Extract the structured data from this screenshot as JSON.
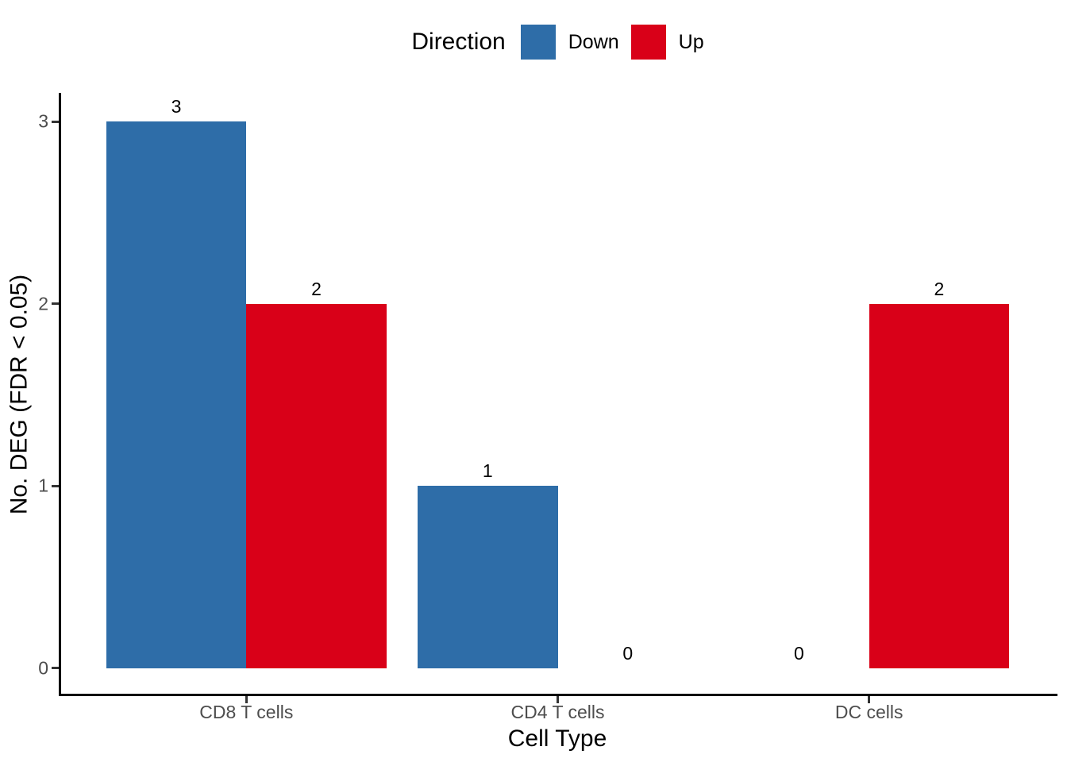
{
  "figure": {
    "background": "#FFFFFF"
  },
  "legend": {
    "title": "Direction",
    "position": "top-center"
  },
  "chart_data": {
    "type": "bar",
    "title": "",
    "xlabel": "Cell Type",
    "ylabel": "No. DEG (FDR < 0.05)",
    "categories": [
      "CD8 T cells",
      "CD4 T cells",
      "DC cells"
    ],
    "series": [
      {
        "name": "Down",
        "color": "#2E6DA8",
        "values": [
          3,
          1,
          0
        ]
      },
      {
        "name": "Up",
        "color": "#D90018",
        "values": [
          2,
          0,
          2
        ]
      }
    ],
    "bar_value_labels": [
      [
        "3",
        "1",
        "0"
      ],
      [
        "2",
        "0",
        "2"
      ]
    ],
    "yticks": [
      "0",
      "1",
      "2",
      "3"
    ],
    "ylim": [
      0,
      3.15
    ],
    "grid": false,
    "legend_position": "top",
    "colors": {
      "down": "#2E6DA8",
      "up": "#D90018",
      "axis_line": "#000000",
      "tick_label": "#4D4D4D",
      "text": "#000000"
    }
  }
}
